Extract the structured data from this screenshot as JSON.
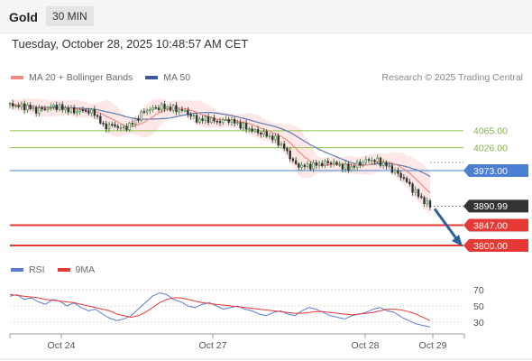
{
  "header": {
    "asset": "Gold",
    "timeframe": "30 MIN"
  },
  "datetime": "Tuesday, October 28, 2025 10:48:57 AM CET",
  "legend": [
    {
      "label": "MA 20 + Bollinger Bands",
      "color": "#f28b82"
    },
    {
      "label": "MA 50",
      "color": "#3b5998"
    }
  ],
  "research": "Research © 2025 Trading Central",
  "colors": {
    "candle_up": "#2e7d32",
    "candle_down": "#333333",
    "band_fill": "#fde0df",
    "ma20": "#f28b82",
    "ma50": "#5b7bb5",
    "resistance": "#8bc34a",
    "pivot": "#4a7fd4",
    "support": "#e53935",
    "arrow": "#2f5f99",
    "rsi": "#5b7bd5",
    "rsi_ma": "#e53935"
  },
  "chart_data": [
    {
      "type": "candlestick",
      "x_labels": [
        "Oct 24",
        "Oct 27",
        "Oct 28",
        "Oct 29"
      ],
      "series": [
        {
          "name": "MA 20 + Bollinger Bands"
        },
        {
          "name": "MA 50"
        }
      ],
      "price_path": [
        [
          0,
          4125
        ],
        [
          6,
          4122
        ],
        [
          12,
          4120
        ],
        [
          18,
          4112
        ],
        [
          24,
          4116
        ],
        [
          30,
          4122
        ],
        [
          38,
          4115
        ],
        [
          44,
          4110
        ],
        [
          50,
          4112
        ],
        [
          58,
          4106
        ],
        [
          64,
          4075
        ],
        [
          70,
          4078
        ],
        [
          78,
          4070
        ],
        [
          84,
          4082
        ],
        [
          92,
          4110
        ],
        [
          98,
          4116
        ],
        [
          104,
          4120
        ],
        [
          112,
          4116
        ],
        [
          120,
          4110
        ],
        [
          128,
          4090
        ],
        [
          136,
          4092
        ],
        [
          142,
          4086
        ],
        [
          150,
          4090
        ],
        [
          158,
          4078
        ],
        [
          166,
          4066
        ],
        [
          174,
          4058
        ],
        [
          182,
          4045
        ],
        [
          188,
          4025
        ],
        [
          196,
          3985
        ],
        [
          204,
          3983
        ],
        [
          212,
          3988
        ],
        [
          220,
          3992
        ],
        [
          226,
          3985
        ],
        [
          232,
          3978
        ],
        [
          240,
          3990
        ],
        [
          246,
          3998
        ],
        [
          252,
          3995
        ],
        [
          258,
          3985
        ],
        [
          264,
          3970
        ],
        [
          270,
          3955
        ],
        [
          276,
          3930
        ],
        [
          283,
          3905
        ],
        [
          288,
          3890.99
        ]
      ],
      "levels": [
        {
          "value": 4065.0,
          "label": "4065.00",
          "kind": "resistance"
        },
        {
          "value": 4026.0,
          "label": "4026.00",
          "kind": "resistance"
        },
        {
          "value": 3973.0,
          "label": "3973.00",
          "kind": "pivot"
        },
        {
          "value": 3890.99,
          "label": "3890.99",
          "kind": "last_price"
        },
        {
          "value": 3847.0,
          "label": "3847.00",
          "kind": "support"
        },
        {
          "value": 3800.0,
          "label": "3800.00",
          "kind": "support"
        }
      ],
      "projection": {
        "from": 3890.99,
        "to": 3800.0,
        "direction": "down"
      }
    },
    {
      "type": "line",
      "series": [
        {
          "name": "RSI",
          "values": [
            62,
            64,
            58,
            60,
            55,
            52,
            58,
            56,
            50,
            54,
            48,
            44,
            46,
            40,
            35,
            32,
            34,
            38,
            46,
            54,
            62,
            66,
            64,
            58,
            55,
            50,
            48,
            52,
            54,
            50,
            46,
            48,
            50,
            46,
            44,
            40,
            38,
            42,
            44,
            40,
            38,
            44,
            48,
            46,
            42,
            38,
            36,
            34,
            38,
            40,
            42,
            46,
            48,
            44,
            42,
            36,
            32,
            28,
            26,
            24
          ]
        },
        {
          "name": "9MA",
          "values": [
            64,
            63,
            62,
            61,
            60,
            58,
            57,
            56,
            55,
            54,
            52,
            50,
            48,
            46,
            44,
            40,
            38,
            36,
            38,
            42,
            48,
            54,
            58,
            60,
            60,
            58,
            56,
            54,
            53,
            52,
            51,
            50,
            49,
            48,
            47,
            46,
            45,
            44,
            43,
            42,
            41,
            41,
            42,
            43,
            43,
            42,
            41,
            40,
            39,
            40,
            41,
            42,
            44,
            46,
            46,
            45,
            43,
            40,
            36,
            32
          ]
        }
      ],
      "y_ticks": [
        70,
        50,
        30
      ],
      "x_labels": [
        "Oct 24",
        "Oct 27",
        "Oct 28",
        "Oct 29"
      ]
    }
  ],
  "rsi_legend": [
    {
      "label": "RSI",
      "color": "#5b7bd5"
    },
    {
      "label": "9MA",
      "color": "#e53935"
    }
  ]
}
